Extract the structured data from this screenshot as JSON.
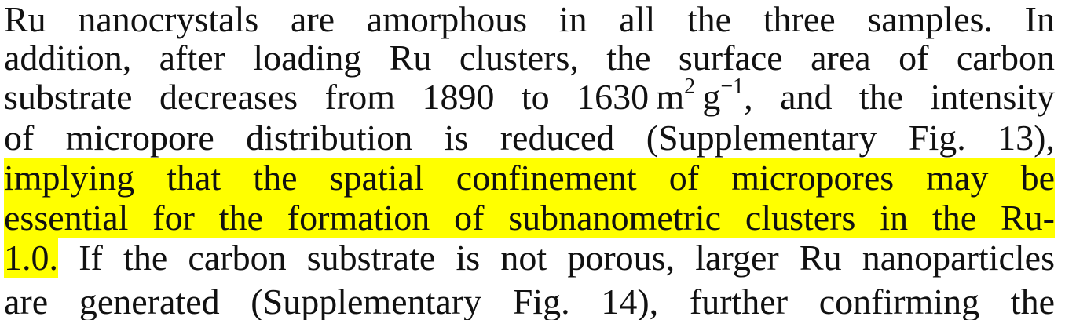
{
  "document": {
    "lines": {
      "l1": "Ru nanocrystals are amorphous in all the three samples. In",
      "l2": "addition, after loading Ru clusters, the surface area of carbon",
      "l3": {
        "pre": "substrate decreases from 1890 to 1630 m",
        "sup1": "2",
        "mid": " g",
        "sup2": "−1",
        "post": ", and the intensity"
      },
      "l4": "of micropore distribution is reduced (Supplementary Fig. 13),",
      "l5": "implying that the spatial confinement of micropores may be",
      "l6": "essential for the formation of subnanometric clusters in the Ru-",
      "l7": {
        "highlighted": "1.0.",
        "rest": " If the carbon substrate is not porous, larger Ru nanoparticles"
      },
      "l8": "are generated (Supplementary Fig. 14), further confirming the"
    },
    "highlight_color": "#ffff00"
  }
}
